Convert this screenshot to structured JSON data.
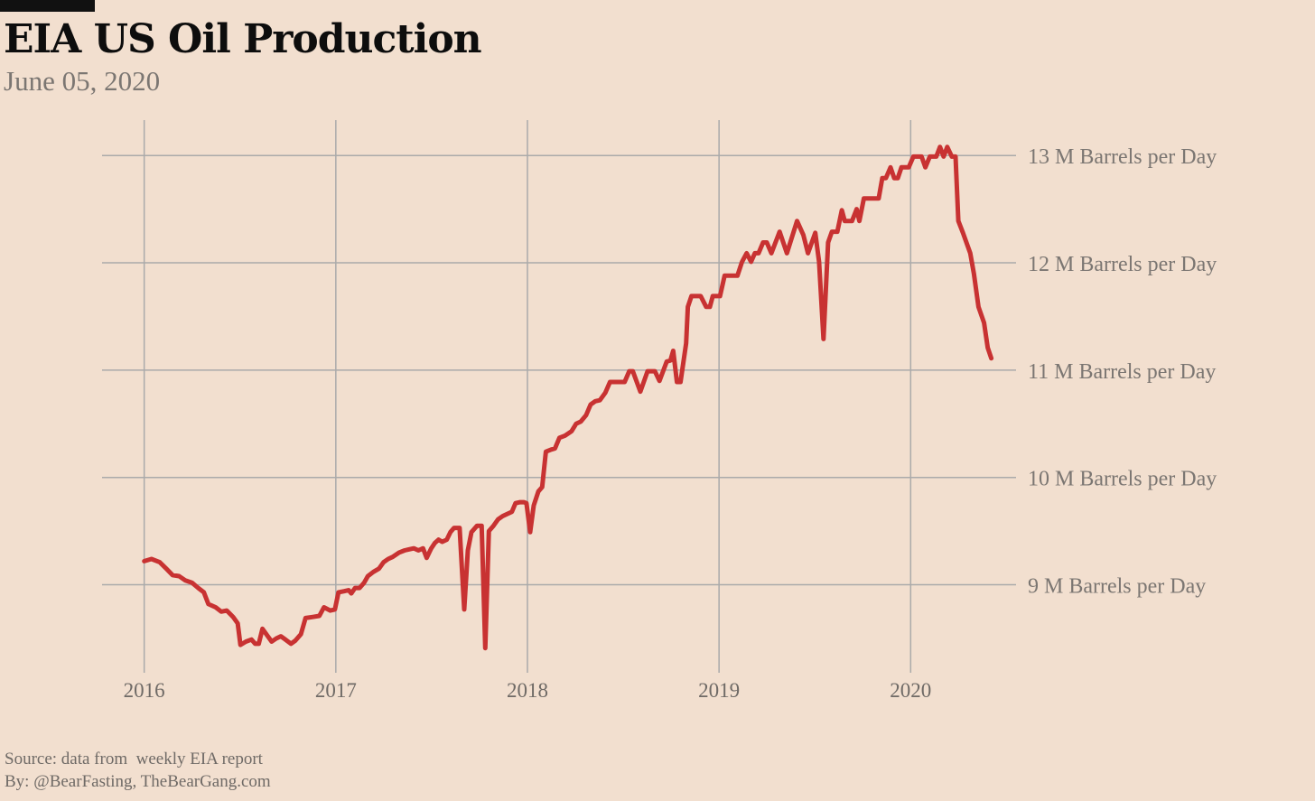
{
  "header": {
    "title": "EIA US Oil Production",
    "subtitle": "June 05, 2020"
  },
  "footer": {
    "source": "Source: data from  weekly EIA report",
    "by": "By: @BearFasting, TheBearGang.com"
  },
  "colors": {
    "background": "#f2dfcf",
    "line": "#c83232",
    "grid": "#aaaaaa",
    "title_bar": "#111111"
  },
  "chart_data": {
    "type": "line",
    "title": "EIA US Oil Production",
    "subtitle": "June 05, 2020",
    "xlabel": "",
    "ylabel": "",
    "xlim": [
      2015.78,
      2020.55
    ],
    "ylim": [
      8.18,
      13.33
    ],
    "grid": true,
    "y_axis_position": "right",
    "x_ticks": [
      2016,
      2017,
      2018,
      2019,
      2020
    ],
    "x_tick_labels": [
      "2016",
      "2017",
      "2018",
      "2019",
      "2020"
    ],
    "y_ticks": [
      9,
      10,
      11,
      12,
      13
    ],
    "y_tick_labels": [
      "9 M Barrels per Day",
      "10 M Barrels per Day",
      "11 M Barrels per Day",
      "12 M Barrels per Day",
      "13 M Barrels per Day"
    ],
    "series": [
      {
        "x": [
          2016.0,
          2016.038,
          2016.081,
          2016.115,
          2016.148,
          2016.182,
          2016.215,
          2016.249,
          2016.282,
          2016.311,
          2016.335,
          2016.373,
          2016.402,
          2016.431,
          2016.464,
          2016.488,
          2016.502,
          2016.531,
          2016.56,
          2016.579,
          2016.598,
          2016.617,
          2016.641,
          2016.665,
          2016.689,
          2016.713,
          2016.737,
          2016.766,
          2016.789,
          2016.818,
          2016.842,
          2016.88,
          2016.914,
          2016.938,
          2016.971,
          2016.995,
          2017.014,
          2017.043,
          2017.067,
          2017.081,
          2017.1,
          2017.124,
          2017.148,
          2017.167,
          2017.196,
          2017.225,
          2017.249,
          2017.273,
          2017.297,
          2017.33,
          2017.359,
          2017.383,
          2017.407,
          2017.431,
          2017.455,
          2017.474,
          2017.498,
          2017.517,
          2017.536,
          2017.555,
          2017.579,
          2017.598,
          2017.617,
          2017.646,
          2017.67,
          2017.689,
          2017.708,
          2017.737,
          2017.761,
          2017.78,
          2017.799,
          2017.823,
          2017.847,
          2017.871,
          2017.895,
          2017.919,
          2017.938,
          2017.962,
          2017.981,
          2017.995,
          2018.014,
          2018.033,
          2018.057,
          2018.077,
          2018.096,
          2018.124,
          2018.144,
          2018.167,
          2018.196,
          2018.23,
          2018.254,
          2018.278,
          2018.306,
          2018.33,
          2018.354,
          2018.378,
          2018.407,
          2018.431,
          2018.469,
          2018.507,
          2018.531,
          2018.55,
          2018.589,
          2018.627,
          2018.665,
          2018.689,
          2018.727,
          2018.746,
          2018.761,
          2018.78,
          2018.799,
          2018.828,
          2018.837,
          2018.856,
          2018.904,
          2018.933,
          2018.952,
          2018.967,
          2019.005,
          2019.029,
          2019.096,
          2019.12,
          2019.144,
          2019.167,
          2019.187,
          2019.206,
          2019.23,
          2019.249,
          2019.273,
          2019.316,
          2019.354,
          2019.407,
          2019.44,
          2019.464,
          2019.502,
          2019.522,
          2019.545,
          2019.569,
          2019.589,
          2019.617,
          2019.641,
          2019.656,
          2019.694,
          2019.718,
          2019.732,
          2019.756,
          2019.833,
          2019.852,
          2019.871,
          2019.895,
          2019.914,
          2019.933,
          2019.952,
          2019.99,
          2020.014,
          2020.057,
          2020.077,
          2020.1,
          2020.134,
          2020.153,
          2020.172,
          2020.191,
          2020.215,
          2020.234,
          2020.249,
          2020.273,
          2020.311,
          2020.33,
          2020.354,
          2020.383,
          2020.402,
          2020.421
        ],
        "y": [
          9.22,
          9.24,
          9.21,
          9.15,
          9.09,
          9.08,
          9.04,
          9.02,
          8.97,
          8.93,
          8.82,
          8.79,
          8.75,
          8.76,
          8.7,
          8.64,
          8.44,
          8.47,
          8.49,
          8.45,
          8.45,
          8.59,
          8.53,
          8.47,
          8.5,
          8.52,
          8.49,
          8.45,
          8.48,
          8.54,
          8.69,
          8.7,
          8.71,
          8.79,
          8.76,
          8.77,
          8.93,
          8.94,
          8.95,
          8.92,
          8.97,
          8.97,
          9.02,
          9.08,
          9.12,
          9.15,
          9.21,
          9.24,
          9.26,
          9.3,
          9.32,
          9.33,
          9.34,
          9.32,
          9.34,
          9.25,
          9.34,
          9.39,
          9.42,
          9.4,
          9.42,
          9.49,
          9.53,
          9.53,
          8.77,
          9.32,
          9.49,
          9.55,
          9.55,
          8.41,
          9.5,
          9.55,
          9.61,
          9.64,
          9.66,
          9.68,
          9.76,
          9.77,
          9.77,
          9.76,
          9.49,
          9.74,
          9.87,
          9.91,
          10.24,
          10.26,
          10.27,
          10.37,
          10.39,
          10.43,
          10.5,
          10.52,
          10.58,
          10.68,
          10.71,
          10.72,
          10.79,
          10.89,
          10.89,
          10.89,
          10.99,
          10.99,
          10.8,
          10.99,
          10.99,
          10.9,
          11.08,
          11.09,
          11.18,
          10.89,
          10.89,
          11.25,
          11.59,
          11.69,
          11.69,
          11.59,
          11.59,
          11.69,
          11.69,
          11.88,
          11.88,
          12.01,
          12.09,
          12.01,
          12.09,
          12.09,
          12.19,
          12.19,
          12.09,
          12.29,
          12.09,
          12.39,
          12.26,
          12.09,
          12.28,
          12.01,
          11.29,
          12.19,
          12.29,
          12.29,
          12.49,
          12.39,
          12.39,
          12.5,
          12.39,
          12.6,
          12.6,
          12.79,
          12.79,
          12.89,
          12.79,
          12.79,
          12.89,
          12.89,
          12.99,
          12.99,
          12.89,
          12.99,
          12.99,
          13.08,
          12.99,
          13.08,
          12.99,
          12.99,
          12.39,
          12.28,
          12.09,
          11.9,
          11.59,
          11.44,
          11.21,
          11.11
        ]
      }
    ]
  }
}
